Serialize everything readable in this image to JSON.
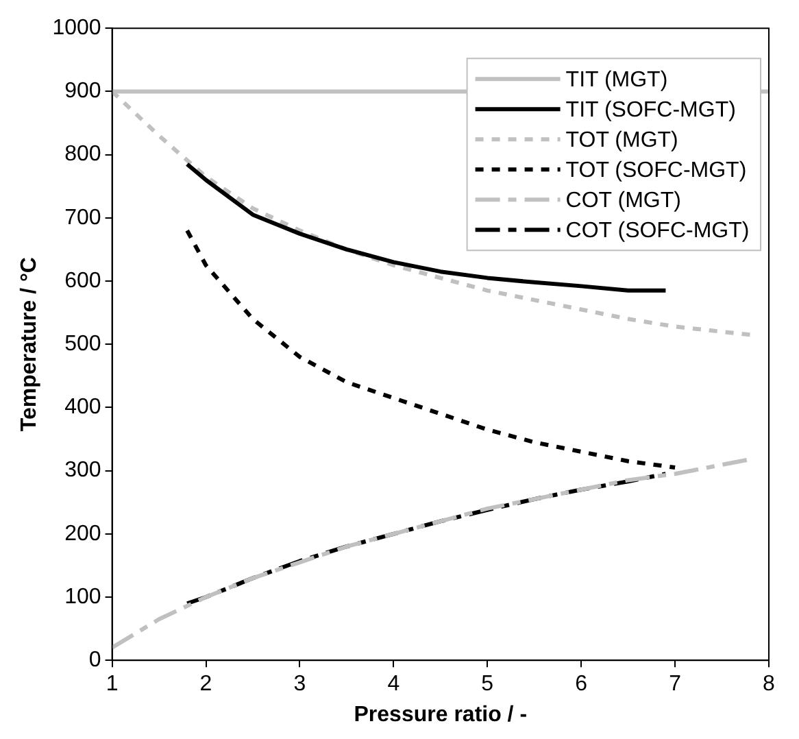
{
  "chart_data": {
    "type": "line",
    "xlabel": "Pressure ratio / -",
    "ylabel": "Temperature / °C",
    "xlim": [
      1,
      8
    ],
    "ylim": [
      0,
      1000
    ],
    "xticks": [
      1,
      2,
      3,
      4,
      5,
      6,
      7,
      8
    ],
    "yticks": [
      0,
      100,
      200,
      300,
      400,
      500,
      600,
      700,
      800,
      900,
      1000
    ],
    "grid": false,
    "legend": "top right",
    "marker": "none",
    "series": [
      {
        "name": "TIT (MGT)",
        "color": "#c0c0c0",
        "line_style": "solid",
        "x": [
          1,
          8
        ],
        "values": [
          900,
          900
        ]
      },
      {
        "name": "TIT (SOFC-MGT)",
        "color": "#000000",
        "line_style": "solid",
        "x": [
          1.8,
          2,
          2.5,
          3,
          3.5,
          4,
          4.5,
          5,
          5.5,
          6,
          6.5,
          6.9
        ],
        "values": [
          785,
          760,
          705,
          675,
          650,
          630,
          615,
          605,
          598,
          592,
          585,
          585
        ]
      },
      {
        "name": "TOT (MGT)",
        "color": "#c0c0c0",
        "line_style": "dotted",
        "x": [
          1,
          1.5,
          2,
          2.5,
          3,
          3.5,
          4,
          4.5,
          5,
          5.5,
          6,
          6.5,
          7,
          7.8
        ],
        "values": [
          900,
          830,
          765,
          715,
          680,
          650,
          625,
          605,
          585,
          570,
          555,
          540,
          528,
          515
        ]
      },
      {
        "name": "TOT (SOFC-MGT)",
        "color": "#000000",
        "line_style": "dotted",
        "x": [
          1.8,
          2,
          2.5,
          3,
          3.5,
          4,
          4.5,
          5,
          5.5,
          6,
          6.5,
          7
        ],
        "values": [
          680,
          625,
          540,
          480,
          440,
          415,
          390,
          365,
          345,
          330,
          315,
          305
        ]
      },
      {
        "name": "COT (MGT)",
        "color": "#c0c0c0",
        "line_style": "dashed",
        "x": [
          1,
          1.5,
          2,
          2.5,
          3,
          3.5,
          4,
          4.5,
          5,
          5.5,
          6,
          6.5,
          7,
          7.8
        ],
        "values": [
          20,
          65,
          100,
          130,
          155,
          180,
          200,
          220,
          240,
          255,
          270,
          285,
          295,
          318
        ]
      },
      {
        "name": "COT (SOFC-MGT)",
        "color": "#000000",
        "line_style": "dashed",
        "x": [
          1.8,
          2,
          2.5,
          3,
          3.5,
          4,
          4.5,
          5,
          5.5,
          6,
          6.5,
          6.9
        ],
        "values": [
          90,
          100,
          130,
          157,
          180,
          200,
          220,
          238,
          255,
          270,
          283,
          295
        ]
      }
    ]
  }
}
